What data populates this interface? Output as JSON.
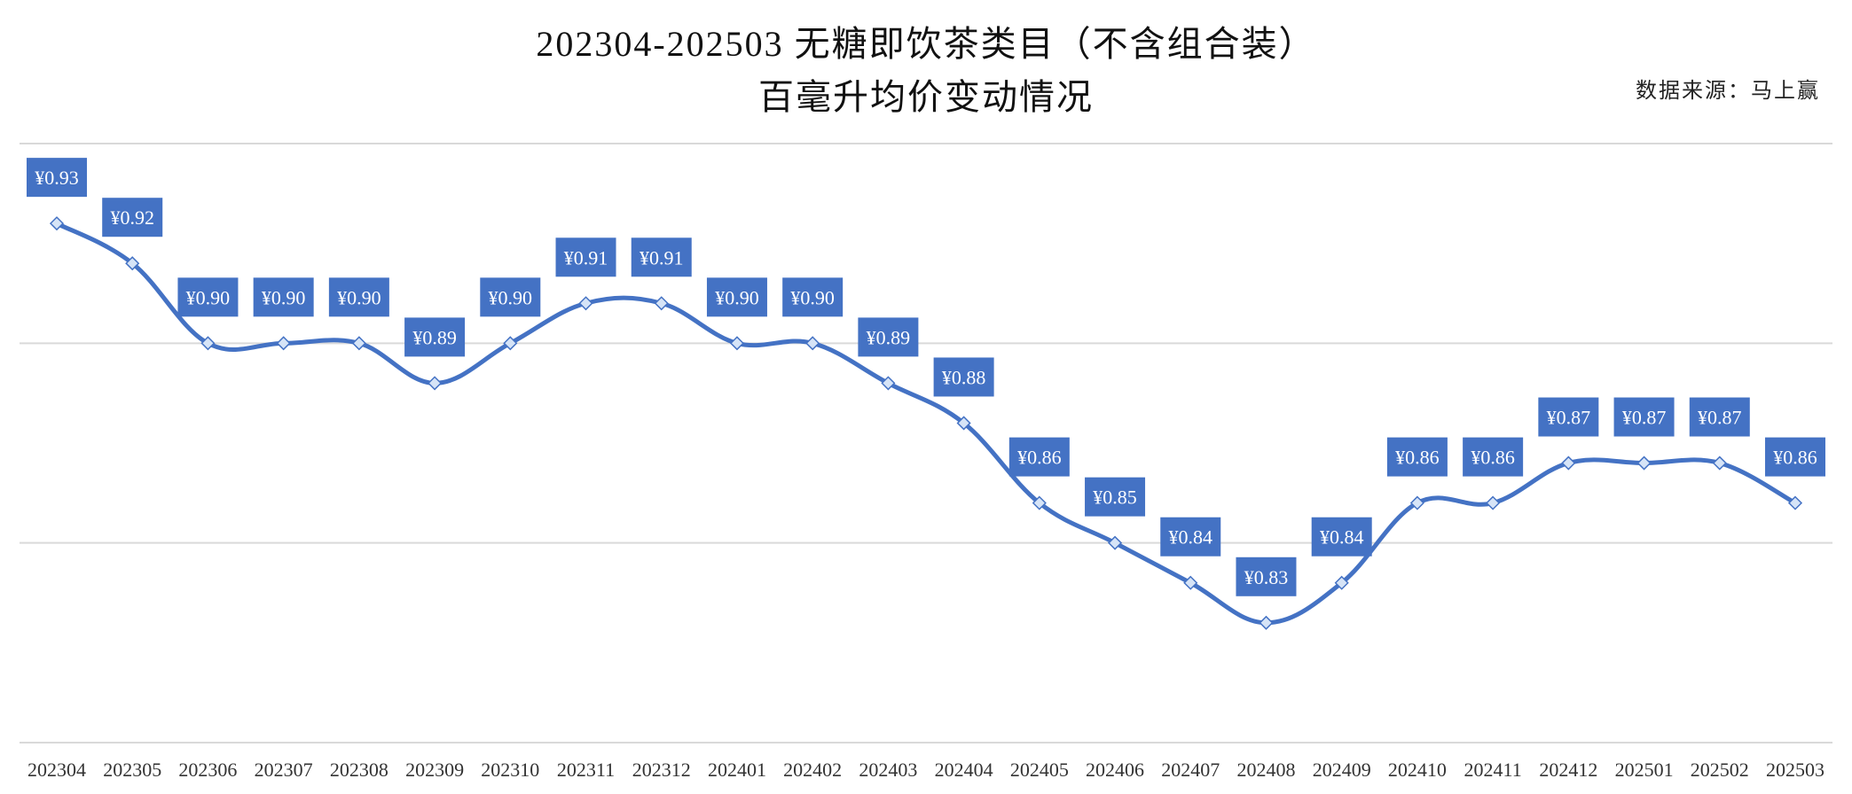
{
  "header": {
    "title_line1": "202304-202503 无糖即饮茶类目（不含组合装）",
    "title_line2": "百毫升均价变动情况",
    "source": "数据来源：马上赢"
  },
  "chart_data": {
    "type": "line",
    "title": "202304-202503 无糖即饮茶类目（不含组合装）百毫升均价变动情况",
    "xlabel": "",
    "ylabel": "",
    "categories": [
      "202304",
      "202305",
      "202306",
      "202307",
      "202308",
      "202309",
      "202310",
      "202311",
      "202312",
      "202401",
      "202402",
      "202403",
      "202404",
      "202405",
      "202406",
      "202407",
      "202408",
      "202409",
      "202410",
      "202411",
      "202412",
      "202501",
      "202502",
      "202503"
    ],
    "series": [
      {
        "values": [
          0.93,
          0.92,
          0.9,
          0.9,
          0.9,
          0.89,
          0.9,
          0.91,
          0.91,
          0.9,
          0.9,
          0.89,
          0.88,
          0.86,
          0.85,
          0.84,
          0.83,
          0.84,
          0.86,
          0.86,
          0.87,
          0.87,
          0.87,
          0.86
        ],
        "labels": [
          "¥0.93",
          "¥0.92",
          "¥0.90",
          "¥0.90",
          "¥0.90",
          "¥0.89",
          "¥0.90",
          "¥0.91",
          "¥0.91",
          "¥0.90",
          "¥0.90",
          "¥0.89",
          "¥0.88",
          "¥0.86",
          "¥0.85",
          "¥0.84",
          "¥0.83",
          "¥0.84",
          "¥0.86",
          "¥0.86",
          "¥0.87",
          "¥0.87",
          "¥0.87",
          "¥0.86"
        ]
      }
    ],
    "ylim": [
      0.8,
      0.95
    ],
    "grid": true,
    "y_axis_labels_shown": false,
    "legend": "none",
    "colors": {
      "line": "#4472C4",
      "marker_fill": "#D6E4F7",
      "label_bg": "#4472C4",
      "label_text": "#FFFFFF",
      "grid": "#D9D9D9"
    }
  }
}
